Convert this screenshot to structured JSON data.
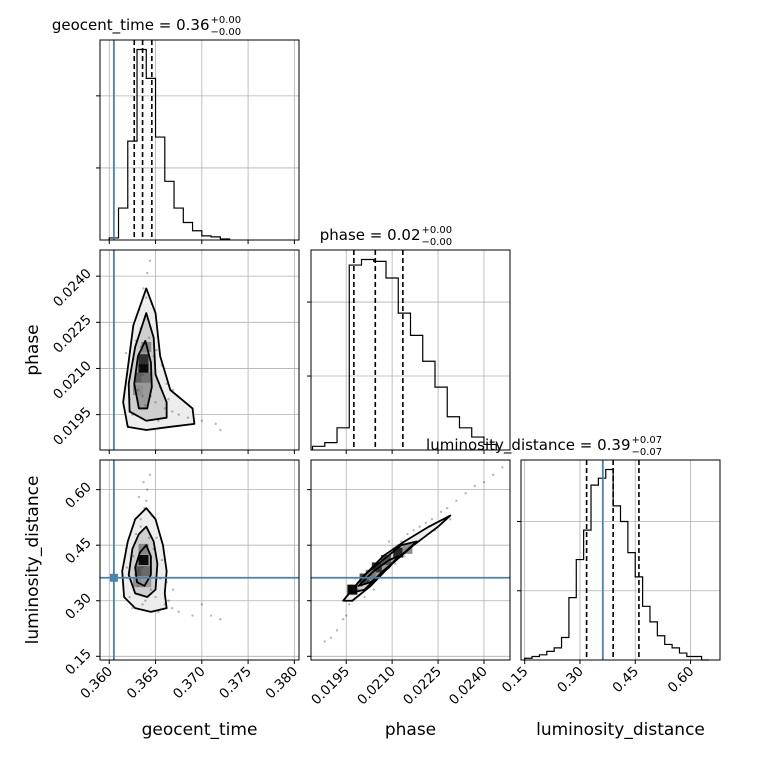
{
  "chart_data": {
    "type": "corner",
    "parameters": [
      "geocent_time",
      "phase",
      "luminosity_distance"
    ],
    "truths": {
      "geocent_time": 0.3605,
      "phase": null,
      "luminosity_distance": 0.362
    },
    "truth_color": "#4682b4",
    "marginals": [
      {
        "parameter": "geocent_time",
        "title_main": "geocent_time = 0.36",
        "title_plus": "+0.00",
        "title_minus": "−0.00",
        "median": 0.3636,
        "q16": 0.3627,
        "q84": 0.3646,
        "xlim": [
          0.359,
          0.3805
        ],
        "hist_edges": [
          0.36,
          0.361,
          0.362,
          0.363,
          0.364,
          0.365,
          0.366,
          0.367,
          0.368,
          0.369,
          0.37,
          0.371,
          0.372,
          0.373
        ],
        "hist_counts": [
          2,
          31,
          96,
          185,
          157,
          100,
          57,
          31,
          17,
          9,
          4,
          3,
          1
        ]
      },
      {
        "parameter": "phase",
        "title_main": "phase = 0.02",
        "title_plus": "+0.00",
        "title_minus": "−0.00",
        "median": 0.02045,
        "q16": 0.01975,
        "q84": 0.02135,
        "xlim": [
          0.01835,
          0.02485
        ],
        "hist_edges": [
          0.0184,
          0.0188,
          0.0192,
          0.0196,
          0.02,
          0.0204,
          0.0208,
          0.0212,
          0.0216,
          0.022,
          0.0224,
          0.0228,
          0.0232,
          0.0236,
          0.024,
          0.0244
        ],
        "hist_counts": [
          2,
          4,
          12,
          100,
          103,
          102,
          93,
          74,
          62,
          48,
          34,
          18,
          12,
          7,
          3
        ]
      },
      {
        "parameter": "luminosity_distance",
        "title_main": "luminosity_distance = 0.39",
        "title_plus": "+0.07",
        "title_minus": "−0.07",
        "median": 0.39,
        "q16": 0.318,
        "q84": 0.46,
        "xlim": [
          0.14,
          0.68
        ],
        "hist_edges": [
          0.15,
          0.17,
          0.19,
          0.21,
          0.23,
          0.25,
          0.27,
          0.29,
          0.31,
          0.33,
          0.35,
          0.37,
          0.39,
          0.41,
          0.43,
          0.45,
          0.47,
          0.49,
          0.51,
          0.53,
          0.55,
          0.57,
          0.59,
          0.61,
          0.63,
          0.65
        ],
        "hist_counts": [
          1,
          2,
          3,
          5,
          7,
          13,
          36,
          58,
          75,
          101,
          105,
          110,
          89,
          80,
          62,
          48,
          31,
          22,
          14,
          9,
          7,
          4,
          2,
          2,
          0
        ]
      }
    ],
    "pairs": [
      {
        "x": "geocent_time",
        "y": "phase",
        "xlim": [
          0.359,
          0.3805
        ],
        "ylim": [
          0.01835,
          0.02485
        ],
        "points": [
          [
            0.3636,
            0.0208
          ],
          [
            0.3631,
            0.0203
          ],
          [
            0.364,
            0.0212
          ],
          [
            0.3634,
            0.0217
          ],
          [
            0.3628,
            0.0206
          ],
          [
            0.3645,
            0.0201
          ],
          [
            0.3638,
            0.0226
          ],
          [
            0.365,
            0.0199
          ],
          [
            0.3626,
            0.0213
          ],
          [
            0.3643,
            0.022
          ],
          [
            0.3632,
            0.0229
          ],
          [
            0.3655,
            0.0204
          ],
          [
            0.3622,
            0.02
          ],
          [
            0.366,
            0.0197
          ],
          [
            0.3637,
            0.0236
          ],
          [
            0.3641,
            0.0241
          ],
          [
            0.3668,
            0.0196
          ],
          [
            0.3619,
            0.0208
          ],
          [
            0.3648,
            0.0214
          ],
          [
            0.3634,
            0.0223
          ],
          [
            0.3675,
            0.0195
          ],
          [
            0.3685,
            0.0194
          ],
          [
            0.37,
            0.0193
          ],
          [
            0.3715,
            0.0192
          ],
          [
            0.372,
            0.019
          ],
          [
            0.3662,
            0.0205
          ],
          [
            0.3657,
            0.0211
          ],
          [
            0.3629,
            0.0219
          ],
          [
            0.3646,
            0.0231
          ],
          [
            0.3625,
            0.0195
          ],
          [
            0.3639,
            0.0198
          ],
          [
            0.3653,
            0.0193
          ],
          [
            0.3644,
            0.0245
          ],
          [
            0.3633,
            0.021
          ],
          [
            0.3669,
            0.0203
          ],
          [
            0.3618,
            0.0215
          ],
          [
            0.3651,
            0.0216
          ],
          [
            0.3636,
            0.0201
          ],
          [
            0.364,
            0.0233
          ],
          [
            0.3664,
            0.02
          ]
        ],
        "contours": [
          [
            [
              0.364,
              0.0236
            ],
            [
              0.365,
              0.0228
            ],
            [
              0.3655,
              0.0214
            ],
            [
              0.3666,
              0.0203
            ],
            [
              0.369,
              0.0197
            ],
            [
              0.3692,
              0.0192
            ],
            [
              0.3665,
              0.0191
            ],
            [
              0.364,
              0.019
            ],
            [
              0.362,
              0.0191
            ],
            [
              0.3615,
              0.0199
            ],
            [
              0.362,
              0.021
            ],
            [
              0.3626,
              0.0224
            ]
          ],
          [
            [
              0.364,
              0.0228
            ],
            [
              0.3648,
              0.022
            ],
            [
              0.365,
              0.0208
            ],
            [
              0.3662,
              0.0199
            ],
            [
              0.3662,
              0.0194
            ],
            [
              0.364,
              0.0193
            ],
            [
              0.3622,
              0.0196
            ],
            [
              0.3621,
              0.0205
            ],
            [
              0.3628,
              0.0217
            ]
          ],
          [
            [
              0.3639,
              0.0219
            ],
            [
              0.3645,
              0.0212
            ],
            [
              0.3646,
              0.0204
            ],
            [
              0.3641,
              0.0197
            ],
            [
              0.3632,
              0.0197
            ],
            [
              0.3627,
              0.0205
            ],
            [
              0.3631,
              0.0214
            ]
          ]
        ],
        "density_cells": [
          [
            0.3637,
            0.021,
            1.0
          ],
          [
            0.3637,
            0.0213,
            0.8
          ],
          [
            0.3634,
            0.0207,
            0.55
          ],
          [
            0.364,
            0.0207,
            0.45
          ],
          [
            0.3631,
            0.0203,
            0.3
          ],
          [
            0.364,
            0.0217,
            0.35
          ]
        ]
      },
      {
        "x": "geocent_time",
        "y": "luminosity_distance",
        "xlim": [
          0.359,
          0.3805
        ],
        "ylim": [
          0.14,
          0.68
        ],
        "points": [
          [
            0.3636,
            0.39
          ],
          [
            0.3631,
            0.34
          ],
          [
            0.364,
            0.45
          ],
          [
            0.3634,
            0.5
          ],
          [
            0.3628,
            0.37
          ],
          [
            0.3645,
            0.33
          ],
          [
            0.3638,
            0.55
          ],
          [
            0.365,
            0.31
          ],
          [
            0.3626,
            0.42
          ],
          [
            0.3643,
            0.47
          ],
          [
            0.3632,
            0.58
          ],
          [
            0.3655,
            0.36
          ],
          [
            0.3622,
            0.31
          ],
          [
            0.366,
            0.29
          ],
          [
            0.3637,
            0.62
          ],
          [
            0.3641,
            0.6
          ],
          [
            0.3668,
            0.28
          ],
          [
            0.3619,
            0.39
          ],
          [
            0.3648,
            0.44
          ],
          [
            0.3634,
            0.52
          ],
          [
            0.3675,
            0.27
          ],
          [
            0.369,
            0.26
          ],
          [
            0.371,
            0.26
          ],
          [
            0.37,
            0.29
          ],
          [
            0.372,
            0.25
          ],
          [
            0.3662,
            0.35
          ],
          [
            0.3657,
            0.41
          ],
          [
            0.3629,
            0.48
          ],
          [
            0.3646,
            0.53
          ],
          [
            0.3625,
            0.28
          ],
          [
            0.3639,
            0.3
          ],
          [
            0.3653,
            0.27
          ],
          [
            0.3644,
            0.64
          ],
          [
            0.3633,
            0.4
          ],
          [
            0.3669,
            0.33
          ],
          [
            0.3618,
            0.44
          ],
          [
            0.3651,
            0.47
          ],
          [
            0.3636,
            0.29
          ],
          [
            0.364,
            0.57
          ],
          [
            0.3664,
            0.3
          ]
        ],
        "contours": [
          [
            [
              0.364,
              0.55
            ],
            [
              0.365,
              0.52
            ],
            [
              0.3658,
              0.45
            ],
            [
              0.3662,
              0.38
            ],
            [
              0.366,
              0.32
            ],
            [
              0.3662,
              0.28
            ],
            [
              0.3645,
              0.27
            ],
            [
              0.3628,
              0.28
            ],
            [
              0.3616,
              0.31
            ],
            [
              0.3614,
              0.38
            ],
            [
              0.362,
              0.46
            ],
            [
              0.3628,
              0.52
            ]
          ],
          [
            [
              0.364,
              0.5
            ],
            [
              0.3648,
              0.46
            ],
            [
              0.3652,
              0.4
            ],
            [
              0.365,
              0.33
            ],
            [
              0.3641,
              0.31
            ],
            [
              0.3628,
              0.32
            ],
            [
              0.3621,
              0.37
            ],
            [
              0.3625,
              0.44
            ],
            [
              0.3632,
              0.48
            ]
          ],
          [
            [
              0.364,
              0.45
            ],
            [
              0.3645,
              0.42
            ],
            [
              0.3645,
              0.37
            ],
            [
              0.3638,
              0.34
            ],
            [
              0.363,
              0.35
            ],
            [
              0.3628,
              0.39
            ],
            [
              0.3633,
              0.43
            ]
          ]
        ],
        "density_cells": [
          [
            0.3637,
            0.41,
            1.0
          ],
          [
            0.3634,
            0.38,
            0.6
          ],
          [
            0.364,
            0.38,
            0.5
          ],
          [
            0.3637,
            0.44,
            0.35
          ],
          [
            0.3631,
            0.35,
            0.3
          ],
          [
            0.364,
            0.35,
            0.25
          ]
        ]
      },
      {
        "x": "phase",
        "y": "luminosity_distance",
        "xlim": [
          0.01835,
          0.02485
        ],
        "ylim": [
          0.14,
          0.68
        ],
        "points": [
          [
            0.0192,
            0.22
          ],
          [
            0.0194,
            0.25
          ],
          [
            0.0196,
            0.29
          ],
          [
            0.0197,
            0.3
          ],
          [
            0.0199,
            0.33
          ],
          [
            0.02,
            0.34
          ],
          [
            0.0202,
            0.36
          ],
          [
            0.0203,
            0.37
          ],
          [
            0.0205,
            0.39
          ],
          [
            0.0206,
            0.41
          ],
          [
            0.0208,
            0.42
          ],
          [
            0.021,
            0.43
          ],
          [
            0.0212,
            0.45
          ],
          [
            0.0213,
            0.46
          ],
          [
            0.0215,
            0.48
          ],
          [
            0.0217,
            0.49
          ],
          [
            0.0219,
            0.5
          ],
          [
            0.0221,
            0.51
          ],
          [
            0.0223,
            0.52
          ],
          [
            0.0226,
            0.54
          ],
          [
            0.0228,
            0.55
          ],
          [
            0.0231,
            0.57
          ],
          [
            0.0234,
            0.59
          ],
          [
            0.0237,
            0.61
          ],
          [
            0.024,
            0.62
          ],
          [
            0.0243,
            0.64
          ],
          [
            0.0246,
            0.66
          ],
          [
            0.0198,
            0.36
          ],
          [
            0.0204,
            0.33
          ],
          [
            0.0209,
            0.46
          ],
          [
            0.0214,
            0.42
          ],
          [
            0.0201,
            0.31
          ],
          [
            0.0207,
            0.38
          ],
          [
            0.0218,
            0.46
          ],
          [
            0.0224,
            0.49
          ],
          [
            0.0195,
            0.26
          ],
          [
            0.0211,
            0.4
          ],
          [
            0.0229,
            0.52
          ],
          [
            0.019,
            0.2
          ],
          [
            0.0188,
            0.19
          ]
        ],
        "contours": [
          [
            [
              0.0194,
              0.3
            ],
            [
              0.02,
              0.36
            ],
            [
              0.0207,
              0.42
            ],
            [
              0.0214,
              0.46
            ],
            [
              0.0222,
              0.5
            ],
            [
              0.0229,
              0.53
            ],
            [
              0.0225,
              0.5
            ],
            [
              0.0217,
              0.45
            ],
            [
              0.021,
              0.4
            ],
            [
              0.0203,
              0.34
            ],
            [
              0.0197,
              0.3
            ]
          ],
          [
            [
              0.0196,
              0.32
            ],
            [
              0.0201,
              0.37
            ],
            [
              0.0207,
              0.41
            ],
            [
              0.0213,
              0.45
            ],
            [
              0.0218,
              0.46
            ],
            [
              0.0214,
              0.43
            ],
            [
              0.0207,
              0.38
            ],
            [
              0.0201,
              0.33
            ]
          ],
          [
            [
              0.0199,
              0.34
            ],
            [
              0.0204,
              0.38
            ],
            [
              0.0209,
              0.41
            ],
            [
              0.0212,
              0.42
            ],
            [
              0.0209,
              0.39
            ],
            [
              0.0203,
              0.35
            ]
          ]
        ],
        "density_cells": [
          [
            0.0197,
            0.33,
            1.0
          ],
          [
            0.0201,
            0.36,
            0.7
          ],
          [
            0.0205,
            0.39,
            0.8
          ],
          [
            0.0208,
            0.41,
            0.6
          ],
          [
            0.0212,
            0.43,
            0.85
          ],
          [
            0.0203,
            0.37,
            0.4
          ],
          [
            0.0215,
            0.44,
            0.3
          ]
        ]
      }
    ],
    "ticks": {
      "geocent_time": {
        "values": [
          0.36,
          0.365,
          0.37,
          0.375,
          0.38
        ],
        "labels": [
          "0.360",
          "0.365",
          "0.370",
          "0.375",
          "0.380"
        ]
      },
      "phase": {
        "values": [
          0.0195,
          0.021,
          0.0225,
          0.024
        ],
        "labels": [
          "0.0195",
          "0.0210",
          "0.0225",
          "0.0240"
        ]
      },
      "luminosity_distance": {
        "values": [
          0.15,
          0.3,
          0.45,
          0.6
        ],
        "labels": [
          "0.15",
          "0.30",
          "0.45",
          "0.60"
        ]
      }
    },
    "grid": true
  }
}
